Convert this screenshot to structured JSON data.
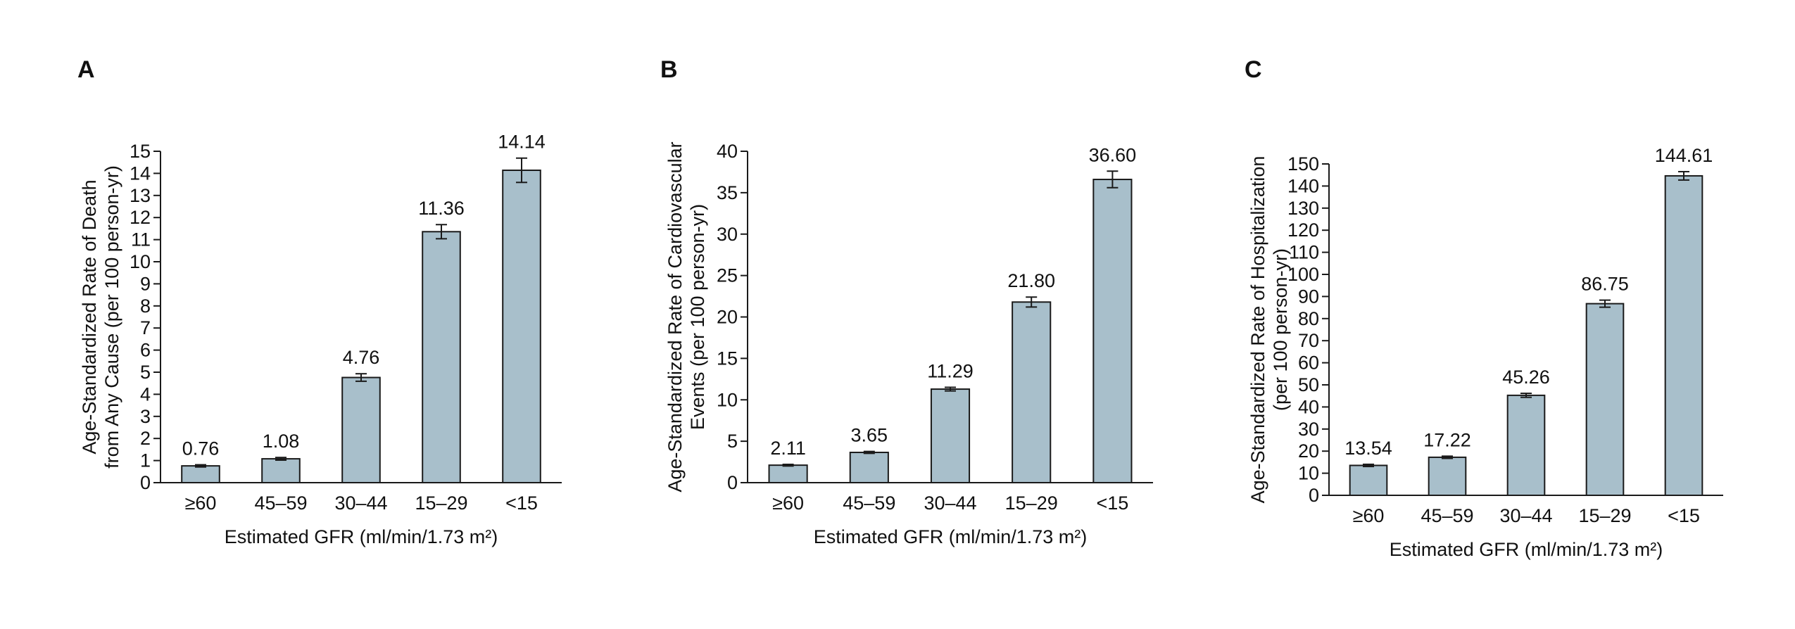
{
  "figure": {
    "panels": [
      "A",
      "B",
      "C"
    ]
  },
  "colors": {
    "bar_fill": "#a8bfcb",
    "bar_stroke": "#1a1a1a",
    "axis": "#1a1a1a",
    "text": "#111111"
  },
  "chart_data": [
    {
      "panel": "A",
      "type": "bar",
      "categories": [
        "≥60",
        "45–59",
        "30–44",
        "15–29",
        "<15"
      ],
      "values": [
        0.76,
        1.08,
        4.76,
        11.36,
        14.14
      ],
      "value_labels": [
        "0.76",
        "1.08",
        "4.76",
        "11.36",
        "14.14"
      ],
      "errors": [
        0.05,
        0.06,
        0.17,
        0.32,
        0.55
      ],
      "ylabel": [
        "Age-Standardized Rate of Death",
        "from Any Cause (per 100 person-yr)"
      ],
      "xlabel": "Estimated GFR (ml/min/1.73 m²)",
      "ylim": [
        0,
        15
      ],
      "yticks": [
        0,
        1,
        2,
        3,
        4,
        5,
        6,
        7,
        8,
        9,
        10,
        11,
        12,
        13,
        14,
        15
      ],
      "grid": false,
      "legend": "none"
    },
    {
      "panel": "B",
      "type": "bar",
      "categories": [
        "≥60",
        "45–59",
        "30–44",
        "15–29",
        "<15"
      ],
      "values": [
        2.11,
        3.65,
        11.29,
        21.8,
        36.6
      ],
      "value_labels": [
        "2.11",
        "3.65",
        "11.29",
        "21.80",
        "36.60"
      ],
      "errors": [
        0.1,
        0.12,
        0.22,
        0.6,
        1.0
      ],
      "ylabel": [
        "Age-Standardized Rate of Cardiovascular",
        "Events (per 100 person-yr)"
      ],
      "xlabel": "Estimated GFR (ml/min/1.73 m²)",
      "ylim": [
        0,
        40
      ],
      "yticks": [
        0,
        5,
        10,
        15,
        20,
        25,
        30,
        35,
        40
      ],
      "grid": false,
      "legend": "none"
    },
    {
      "panel": "C",
      "type": "bar",
      "categories": [
        "≥60",
        "45–59",
        "30–44",
        "15–29",
        "<15"
      ],
      "values": [
        13.54,
        17.22,
        45.26,
        86.75,
        144.61
      ],
      "value_labels": [
        "13.54",
        "17.22",
        "45.26",
        "86.75",
        "144.61"
      ],
      "errors": [
        0.5,
        0.5,
        0.9,
        1.6,
        1.9
      ],
      "ylabel": [
        "Age-Standardized Rate of Hospitalization",
        "(per 100 person-yr)"
      ],
      "xlabel": "Estimated GFR (ml/min/1.73 m²)",
      "ylim": [
        0,
        150
      ],
      "yticks": [
        0,
        10,
        20,
        30,
        40,
        50,
        60,
        70,
        80,
        90,
        100,
        110,
        120,
        130,
        140,
        150
      ],
      "grid": false,
      "legend": "none"
    }
  ]
}
